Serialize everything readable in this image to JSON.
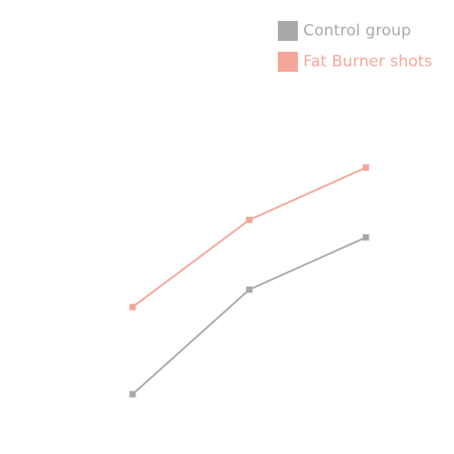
{
  "chart_data": {
    "type": "line",
    "x": [
      1,
      2,
      3
    ],
    "ylim": [
      0,
      10
    ],
    "grid": false,
    "legend_position": "top-right",
    "series": [
      {
        "name": "Control group",
        "color": "#a9a9a9",
        "values": [
          2,
          5,
          6.5
        ]
      },
      {
        "name": "Fat Burner shots",
        "color": "#f4a698",
        "values": [
          4.5,
          7,
          8.5
        ]
      }
    ]
  }
}
